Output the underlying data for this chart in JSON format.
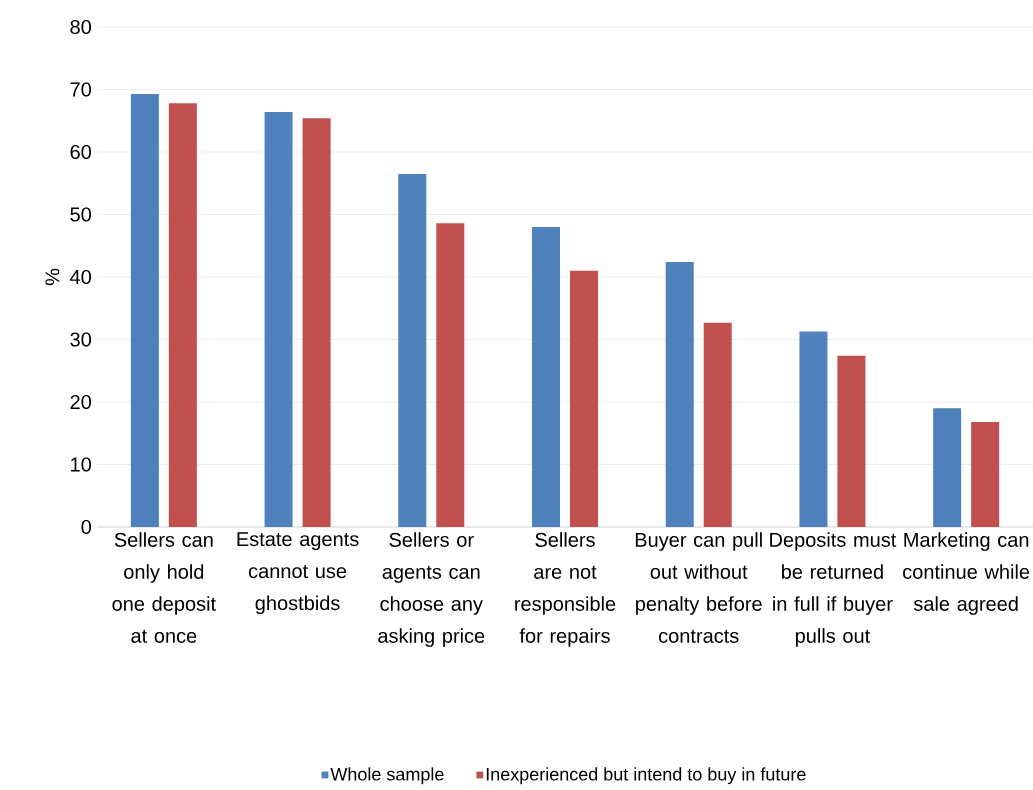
{
  "chart_data": {
    "type": "bar",
    "ylabel": "%",
    "categories": [
      "Sellers can only hold one deposit at once",
      "Estate agents cannot use ghostbids",
      "Sellers or agents can choose any asking price",
      "Sellers are not responsible for repairs",
      "Buyer can pull out without penalty before contracts",
      "Deposits must be returned in full if buyer pulls out",
      "Marketing can continue while sale agreed"
    ],
    "series": [
      {
        "name": "Whole sample",
        "color": "#4f81bd",
        "values": [
          69.3,
          66.4,
          56.5,
          48.0,
          42.4,
          31.3,
          19.0
        ]
      },
      {
        "name": "Inexperienced but intend to buy in future",
        "color": "#c0504d",
        "values": [
          67.8,
          65.4,
          48.6,
          41.0,
          32.7,
          27.4,
          16.8
        ]
      }
    ],
    "ylim": [
      0,
      80
    ],
    "yticks": [
      0,
      10,
      20,
      30,
      40,
      50,
      60,
      70,
      80
    ],
    "grid": "y",
    "legend": "bottom"
  }
}
